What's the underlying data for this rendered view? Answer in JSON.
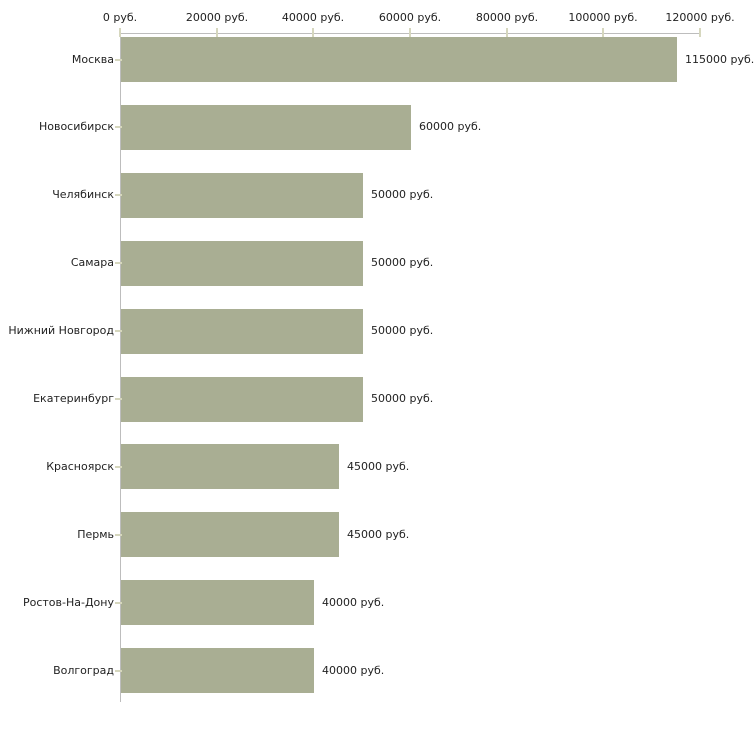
{
  "chart_data": {
    "type": "bar",
    "orientation": "horizontal",
    "categories": [
      "Москва",
      "Новосибирск",
      "Челябинск",
      "Самара",
      "Нижний Новгород",
      "Екатеринбург",
      "Красноярск",
      "Пермь",
      "Ростов-На-Дону",
      "Волгоград"
    ],
    "values": [
      115000,
      60000,
      50000,
      50000,
      50000,
      50000,
      45000,
      45000,
      40000,
      40000
    ],
    "bar_labels": [
      "115000 руб.",
      "60000 руб.",
      "50000 руб.",
      "50000 руб.",
      "50000 руб.",
      "50000 руб.",
      "45000 руб.",
      "45000 руб.",
      "40000 руб.",
      "40000 руб."
    ],
    "x_ticks": [
      0,
      20000,
      40000,
      60000,
      80000,
      100000,
      120000
    ],
    "x_tick_labels": [
      "0 руб.",
      "20000 руб.",
      "40000 руб.",
      "60000 руб.",
      "80000 руб.",
      "100000 руб.",
      "120000 руб."
    ],
    "xlim": [
      0,
      120000
    ],
    "xlabel": "",
    "ylabel": "",
    "title": "",
    "grid": false,
    "legend_position": "none",
    "colors": {
      "bar": "#a9ae93",
      "axis_line": "#bdbdbd",
      "tick": "#d6d7be",
      "text": "#222222",
      "background": "#ffffff"
    }
  }
}
